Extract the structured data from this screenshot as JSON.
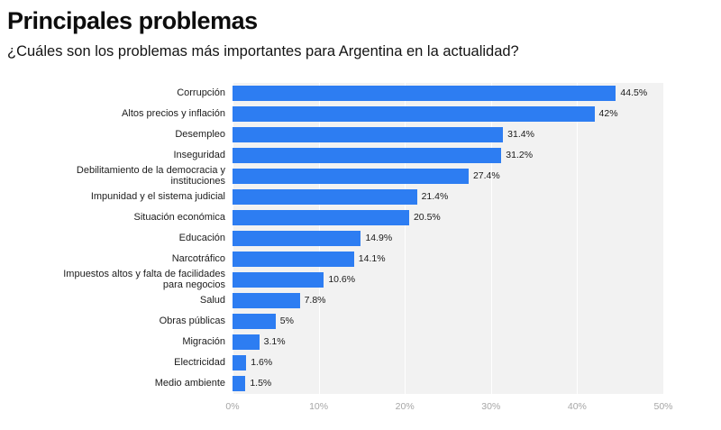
{
  "header": {
    "title": "Principales problemas",
    "subtitle": "¿Cuáles son los problemas más importantes para Argentina en la actualidad?"
  },
  "chart_data": {
    "type": "bar",
    "orientation": "horizontal",
    "title": "Principales problemas",
    "subtitle": "¿Cuáles son los problemas más importantes para Argentina en la actualidad?",
    "categories": [
      "Corrupción",
      "Altos precios y inflación",
      "Desempleo",
      "Inseguridad",
      "Debilitamiento de la democracia y instituciones",
      "Impunidad y el sistema judicial",
      "Situación económica",
      "Educación",
      "Narcotráfico",
      "Impuestos altos y falta de facilidades para negocios",
      "Salud",
      "Obras públicas",
      "Migración",
      "Electricidad",
      "Medio ambiente"
    ],
    "values": [
      44.5,
      42,
      31.4,
      31.2,
      27.4,
      21.4,
      20.5,
      14.9,
      14.1,
      10.6,
      7.8,
      5,
      3.1,
      1.6,
      1.5
    ],
    "value_labels": [
      "44.5%",
      "42%",
      "31.4%",
      "31.2%",
      "27.4%",
      "21.4%",
      "20.5%",
      "14.9%",
      "14.1%",
      "10.6%",
      "7.8%",
      "5%",
      "3.1%",
      "1.6%",
      "1.5%"
    ],
    "xlim": [
      0,
      50
    ],
    "x_ticks": [
      "0%",
      "10%",
      "20%",
      "30%",
      "40%",
      "50%"
    ],
    "xlabel": "",
    "ylabel": "",
    "grid": true,
    "legend": "none",
    "colors": {
      "bar": "#2d7df2",
      "plot_background": "#f2f2f2",
      "gridline": "#ffffff",
      "axis_text": "#a6a6a6",
      "label_text": "#1c1c1c"
    }
  }
}
